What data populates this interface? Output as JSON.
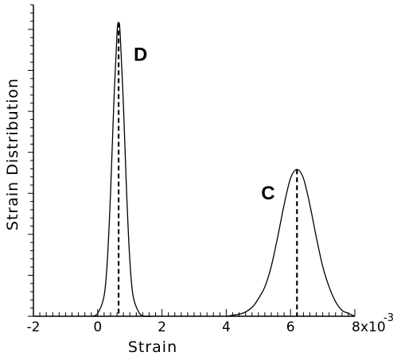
{
  "chart_data": {
    "type": "line",
    "title": "",
    "xlabel": "Strain",
    "ylabel": "Strain Distribution",
    "x_multiplier": "x10",
    "x_exponent": "-3",
    "xlim": [
      -2,
      8
    ],
    "ylim": [
      0,
      1.05
    ],
    "grid": false,
    "x_ticks": [
      -2,
      0,
      2,
      4,
      6
    ],
    "x_tick_labels": [
      "-2",
      "0",
      "2",
      "4",
      "6"
    ],
    "last_tick_label": "8",
    "series": [
      {
        "name": "D",
        "peak_x": 0.65,
        "peak_y": 1.0,
        "x": [
          -0.2,
          0.0,
          0.2,
          0.3,
          0.4,
          0.5,
          0.6,
          0.65,
          0.7,
          0.8,
          0.9,
          1.0,
          1.1,
          1.3,
          1.5,
          1.7
        ],
        "y": [
          0.0,
          0.01,
          0.07,
          0.19,
          0.42,
          0.72,
          0.96,
          1.0,
          0.96,
          0.72,
          0.42,
          0.19,
          0.07,
          0.01,
          0.0,
          0.0
        ]
      },
      {
        "name": "C",
        "peak_x": 6.2,
        "peak_y": 0.5,
        "x": [
          4.0,
          4.5,
          4.8,
          5.0,
          5.2,
          5.4,
          5.6,
          5.8,
          6.0,
          6.2,
          6.4,
          6.6,
          6.8,
          7.0,
          7.2,
          7.4,
          7.6,
          7.8,
          8.0
        ],
        "y": [
          0.0,
          0.01,
          0.03,
          0.06,
          0.1,
          0.17,
          0.27,
          0.38,
          0.47,
          0.5,
          0.47,
          0.38,
          0.27,
          0.17,
          0.1,
          0.05,
          0.02,
          0.01,
          0.0
        ]
      }
    ]
  }
}
